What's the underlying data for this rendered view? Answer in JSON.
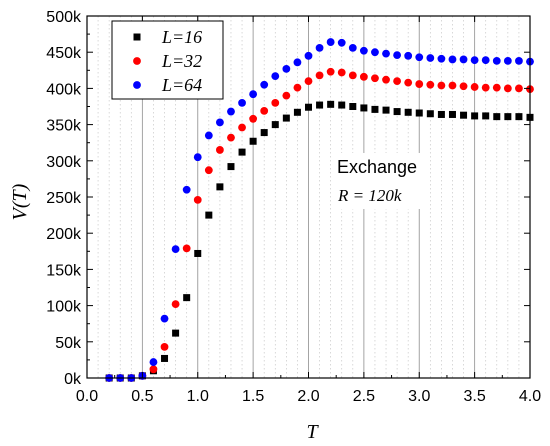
{
  "chart_data": {
    "type": "scatter",
    "xlabel": "T",
    "ylabel": "V(T)",
    "xlim": [
      0.0,
      4.0
    ],
    "ylim": [
      0,
      500000
    ],
    "xticks": [
      0.0,
      0.5,
      1.0,
      1.5,
      2.0,
      2.5,
      3.0,
      3.5,
      4.0
    ],
    "xtick_labels": [
      "0.0",
      "0.5",
      "1.0",
      "1.5",
      "2.0",
      "2.5",
      "3.0",
      "3.5",
      "4.0"
    ],
    "yticks": [
      0,
      50000,
      100000,
      150000,
      200000,
      250000,
      300000,
      350000,
      400000,
      450000,
      500000
    ],
    "ytick_labels": [
      "0k",
      "50k",
      "100k",
      "150k",
      "200k",
      "250k",
      "300k",
      "350k",
      "400k",
      "450k",
      "500k"
    ],
    "grid": "vertical dotted minor lines, solid major lines at 0.5 steps",
    "legend_position": "top-left",
    "annotation": {
      "title": "Exchange",
      "subtitle": "R = 120k"
    },
    "series": [
      {
        "name": "L=16",
        "color": "#000000",
        "marker": "square",
        "x": [
          0.2,
          0.3,
          0.4,
          0.5,
          0.6,
          0.7,
          0.8,
          0.9,
          1.0,
          1.1,
          1.2,
          1.3,
          1.4,
          1.5,
          1.6,
          1.7,
          1.8,
          1.9,
          2.0,
          2.1,
          2.2,
          2.3,
          2.4,
          2.5,
          2.6,
          2.7,
          2.8,
          2.9,
          3.0,
          3.1,
          3.2,
          3.3,
          3.4,
          3.5,
          3.6,
          3.7,
          3.8,
          3.9,
          4.0
        ],
        "y": [
          0,
          0,
          0,
          3000,
          10000,
          27000,
          62000,
          111000,
          172000,
          225000,
          264000,
          292000,
          312000,
          327000,
          339000,
          350000,
          359000,
          367000,
          374000,
          377000,
          378000,
          377000,
          375000,
          373000,
          371000,
          370000,
          368000,
          367000,
          366000,
          365000,
          364000,
          364000,
          363000,
          362000,
          362000,
          361000,
          361000,
          361000,
          360000
        ]
      },
      {
        "name": "L=32",
        "color": "#ff0000",
        "marker": "circle",
        "x": [
          0.2,
          0.3,
          0.4,
          0.5,
          0.6,
          0.7,
          0.8,
          0.9,
          1.0,
          1.1,
          1.2,
          1.3,
          1.4,
          1.5,
          1.6,
          1.7,
          1.8,
          1.9,
          2.0,
          2.1,
          2.2,
          2.3,
          2.4,
          2.5,
          2.6,
          2.7,
          2.8,
          2.9,
          3.0,
          3.1,
          3.2,
          3.3,
          3.4,
          3.5,
          3.6,
          3.7,
          3.8,
          3.9,
          4.0
        ],
        "y": [
          0,
          0,
          0,
          3000,
          12000,
          43000,
          102000,
          179000,
          246000,
          287000,
          315000,
          332000,
          346000,
          358000,
          369000,
          380000,
          390000,
          401000,
          410000,
          418000,
          423000,
          422000,
          418000,
          416000,
          414000,
          412000,
          410000,
          408000,
          406000,
          405000,
          404000,
          404000,
          403000,
          402000,
          401000,
          401000,
          400000,
          400000,
          399000
        ]
      },
      {
        "name": "L=64",
        "color": "#0000ff",
        "marker": "circle",
        "x": [
          0.2,
          0.3,
          0.4,
          0.5,
          0.6,
          0.7,
          0.8,
          0.9,
          1.0,
          1.1,
          1.2,
          1.3,
          1.4,
          1.5,
          1.6,
          1.7,
          1.8,
          1.9,
          2.0,
          2.1,
          2.2,
          2.3,
          2.4,
          2.5,
          2.6,
          2.7,
          2.8,
          2.9,
          3.0,
          3.1,
          3.2,
          3.3,
          3.4,
          3.5,
          3.6,
          3.7,
          3.8,
          3.9,
          4.0
        ],
        "y": [
          0,
          0,
          0,
          3000,
          22000,
          82000,
          178000,
          260000,
          305000,
          335000,
          353000,
          368000,
          380000,
          392000,
          405000,
          417000,
          427000,
          436000,
          445000,
          456000,
          464000,
          463000,
          456000,
          452000,
          450000,
          448000,
          446000,
          445000,
          443000,
          442000,
          441000,
          440000,
          440000,
          439000,
          439000,
          438000,
          438000,
          438000,
          437000
        ]
      }
    ]
  }
}
